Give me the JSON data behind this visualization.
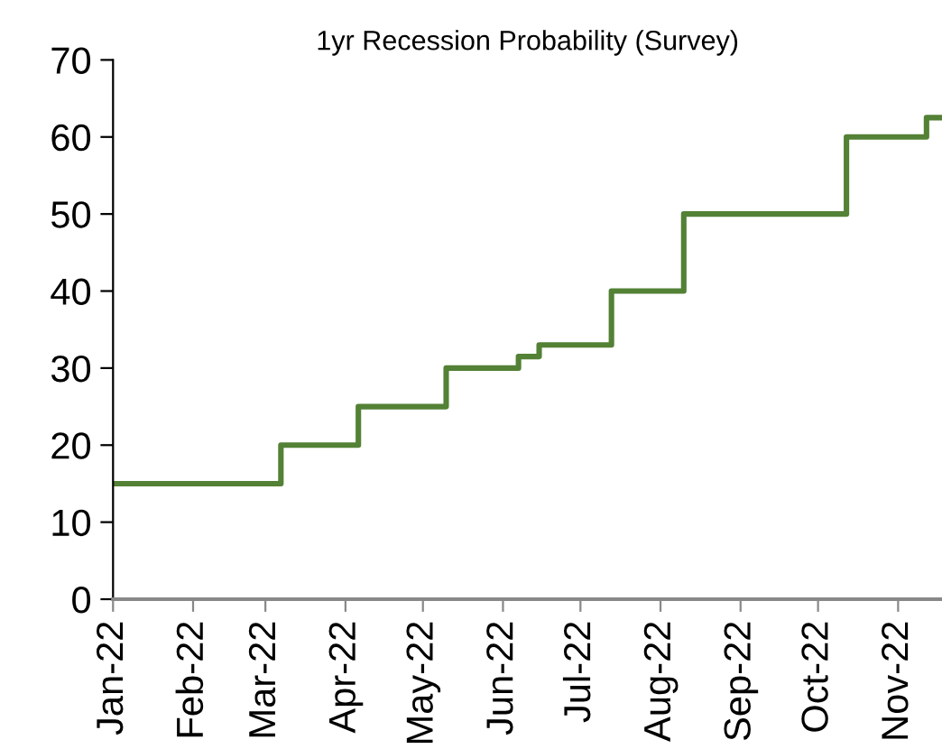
{
  "chart_data": {
    "type": "step",
    "title": "1yr Recession Probability (Survey)",
    "x": [
      "2022-01-01",
      "2022-03-07",
      "2022-04-06",
      "2022-05-10",
      "2022-06-07",
      "2022-06-15",
      "2022-07-13",
      "2022-08-10",
      "2022-10-12",
      "2022-11-12",
      "2022-11-18"
    ],
    "series": [
      {
        "color": "#538135",
        "values": [
          15,
          20,
          25,
          30,
          31.5,
          33,
          40,
          50,
          60,
          62.5,
          62.5
        ]
      }
    ],
    "xlim": [
      "2022-01-01",
      "2022-11-18"
    ],
    "xticks": [
      {
        "value": "2022-01-01",
        "label": "Jan-22"
      },
      {
        "value": "2022-02-01",
        "label": "Feb-22"
      },
      {
        "value": "2022-03-01",
        "label": "Mar-22"
      },
      {
        "value": "2022-04-01",
        "label": "Apr-22"
      },
      {
        "value": "2022-05-01",
        "label": "May-22"
      },
      {
        "value": "2022-06-01",
        "label": "Jun-22"
      },
      {
        "value": "2022-07-01",
        "label": "Jul-22"
      },
      {
        "value": "2022-08-01",
        "label": "Aug-22"
      },
      {
        "value": "2022-09-01",
        "label": "Sep-22"
      },
      {
        "value": "2022-10-01",
        "label": "Oct-22"
      },
      {
        "value": "2022-11-01",
        "label": "Nov-22"
      }
    ],
    "ylim": [
      0,
      70
    ],
    "yticks": [
      0,
      10,
      20,
      30,
      40,
      50,
      60,
      70
    ],
    "grid": false,
    "legend": false
  }
}
